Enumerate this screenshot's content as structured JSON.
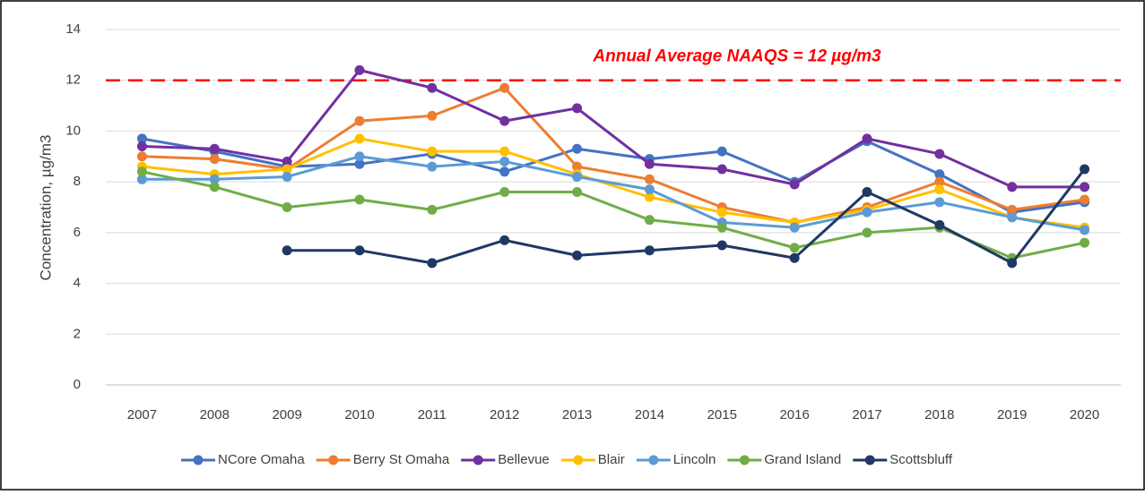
{
  "chart_data": {
    "type": "line",
    "y_label": "Concentration, µg/m3",
    "annotation": "Annual Average NAAQS = 12 µg/m3",
    "reference_line": 12,
    "reference_color": "#ff0000",
    "categories": [
      "2007",
      "2008",
      "2009",
      "2010",
      "2011",
      "2012",
      "2013",
      "2014",
      "2015",
      "2016",
      "2017",
      "2018",
      "2019",
      "2020"
    ],
    "ylim": [
      0,
      14
    ],
    "yticks": [
      0,
      2,
      4,
      6,
      8,
      10,
      12,
      14
    ],
    "grid": true,
    "legend": "bottom",
    "series": [
      {
        "name": "NCore Omaha",
        "color": "#4472c4",
        "values": [
          9.7,
          9.2,
          8.6,
          8.7,
          9.1,
          8.4,
          9.3,
          8.9,
          9.2,
          8.0,
          9.6,
          8.3,
          6.8,
          7.2
        ]
      },
      {
        "name": "Berry St Omaha",
        "color": "#ed7d31",
        "values": [
          9.0,
          8.9,
          8.5,
          10.4,
          10.6,
          11.7,
          8.6,
          8.1,
          7.0,
          6.4,
          7.0,
          8.0,
          6.9,
          7.3
        ]
      },
      {
        "name": "Bellevue",
        "color": "#7030a0",
        "values": [
          9.4,
          9.3,
          8.8,
          12.4,
          11.7,
          10.4,
          10.9,
          8.7,
          8.5,
          7.9,
          9.7,
          9.1,
          7.8,
          7.8
        ]
      },
      {
        "name": "Blair",
        "color": "#ffc000",
        "values": [
          8.6,
          8.3,
          8.5,
          9.7,
          9.2,
          9.2,
          8.3,
          7.4,
          6.8,
          6.4,
          6.9,
          7.7,
          6.6,
          6.2
        ]
      },
      {
        "name": "Lincoln",
        "color": "#5b9bd5",
        "values": [
          8.1,
          8.1,
          8.2,
          9.0,
          8.6,
          8.8,
          8.2,
          7.7,
          6.4,
          6.2,
          6.8,
          7.2,
          6.6,
          6.1
        ]
      },
      {
        "name": "Grand Island",
        "color": "#70ad47",
        "values": [
          8.4,
          7.8,
          7.0,
          7.3,
          6.9,
          7.6,
          7.6,
          6.5,
          6.2,
          5.4,
          6.0,
          6.2,
          5.0,
          5.6
        ]
      },
      {
        "name": "Scottsbluff",
        "color": "#203864",
        "values": [
          null,
          null,
          5.3,
          5.3,
          4.8,
          5.7,
          5.1,
          5.3,
          5.5,
          5.0,
          7.6,
          6.3,
          4.8,
          8.5
        ]
      }
    ]
  }
}
